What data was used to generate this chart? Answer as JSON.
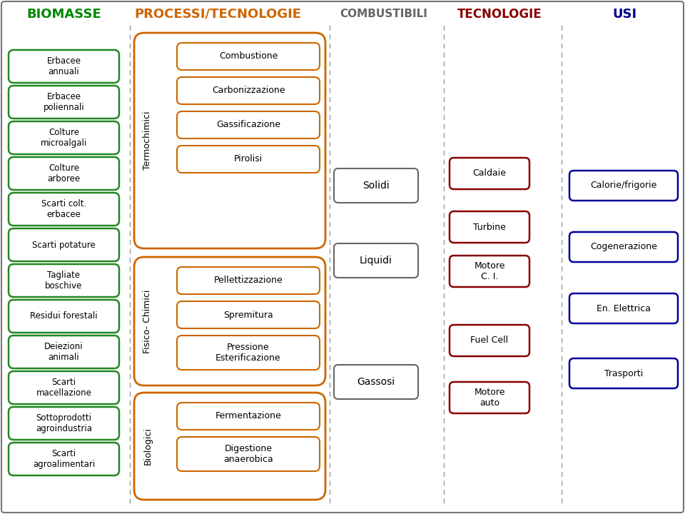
{
  "background_color": "#ffffff",
  "title_biomasse": "BIOMASSE",
  "title_processi": "PROCESSI/TECNOLOGIE",
  "title_combustibili": "COMBUSTIBILI",
  "title_tecnologie": "TECNOLOGIE",
  "title_usi": "USI",
  "title_colors": {
    "BIOMASSE": "#008800",
    "PROCESSI/TECNOLOGIE": "#cc6600",
    "COMBUSTIBILI": "#666666",
    "TECNOLOGIE": "#880000",
    "USI": "#000088"
  },
  "biomasse_items": [
    "Erbacee\nannuali",
    "Erbacee\npoliennali",
    "Colture\nmicroalgali",
    "Colture\narboree",
    "Scarti colt.\nerbacee",
    "Scarti potature",
    "Tagliate\nboschive",
    "Residui forestali",
    "Deiezioni\nanimali",
    "Scarti\nmacellazione",
    "Sottoprodotti\nagroindustria",
    "Scarti\nagroalimentari"
  ],
  "termochimici_items": [
    "Combustione",
    "Carbonizzazione",
    "Gassificazione",
    "Pirolisi"
  ],
  "fisico_chimici_items": [
    "Pellettizzazione",
    "Spremitura",
    "Pressione\nEsterificazione"
  ],
  "biologici_items": [
    "Fermentazione",
    "Digestione\nanaerobica"
  ],
  "combustibili_items": [
    "Solidi",
    "Liquidi",
    "Gassosi"
  ],
  "tecnologie_items": [
    "Caldaie",
    "Turbine",
    "Motore\nC. I.",
    "Fuel Cell",
    "Motore\nauto"
  ],
  "usi_items": [
    "Calorie/frigorie",
    "Cogenerazione",
    "En. Elettrica",
    "Trasporti"
  ],
  "colors": {
    "biomasse_box": "#228822",
    "biomasse_fill": "#ffffff",
    "processi_box": "#cc6600",
    "processi_fill": "#ffffff",
    "combustibili_box": "#666666",
    "combustibili_fill": "#ffffff",
    "tecnologie_box": "#880000",
    "tecnologie_fill": "#ffffff",
    "usi_box": "#000099",
    "usi_fill": "#ffffff"
  }
}
